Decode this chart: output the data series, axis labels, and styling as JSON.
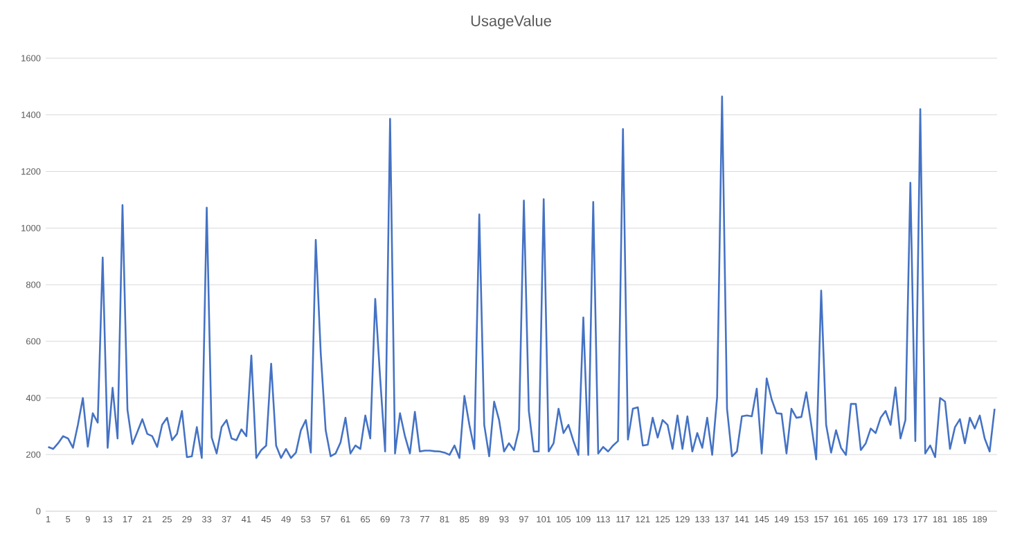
{
  "chart_data": {
    "type": "line",
    "title": "UsageValue",
    "categories": [
      "1",
      null,
      null,
      null,
      "5",
      null,
      null,
      null,
      "9",
      null,
      null,
      null,
      "13",
      null,
      null,
      null,
      "17",
      null,
      null,
      null,
      "21",
      null,
      null,
      null,
      "25",
      null,
      null,
      null,
      "29",
      null,
      null,
      null,
      "33",
      null,
      null,
      null,
      "37",
      null,
      null,
      null,
      "41",
      null,
      null,
      null,
      "45",
      null,
      null,
      null,
      "49",
      null,
      null,
      null,
      "53",
      null,
      null,
      null,
      "57",
      null,
      null,
      null,
      "61",
      null,
      null,
      null,
      "65",
      null,
      null,
      null,
      "69",
      null,
      null,
      null,
      "73",
      null,
      null,
      null,
      "77",
      null,
      null,
      null,
      "81",
      null,
      null,
      null,
      "85",
      null,
      null,
      null,
      "89",
      null,
      null,
      null,
      "93",
      null,
      null,
      null,
      "97",
      null,
      null,
      null,
      "101",
      null,
      null,
      null,
      "105",
      null,
      null,
      null,
      "109",
      null,
      null,
      null,
      "113",
      null,
      null,
      null,
      "117",
      null,
      null,
      null,
      "121",
      null,
      null,
      null,
      "125",
      null,
      null,
      null,
      "129",
      null,
      null,
      null,
      "133",
      null,
      null,
      null,
      "137",
      null,
      null,
      null,
      "141",
      null,
      null,
      null,
      "145",
      null,
      null,
      null,
      "149",
      null,
      null,
      null,
      "153",
      null,
      null,
      null,
      "157",
      null,
      null,
      null,
      "161",
      null,
      null,
      null,
      "165",
      null,
      null,
      null,
      "169",
      null,
      null,
      null,
      "173",
      null,
      null,
      null,
      "177",
      null,
      null,
      null,
      "181",
      null,
      null,
      null,
      "185",
      null,
      null,
      null,
      "189",
      null,
      null,
      null
    ],
    "series": [
      {
        "color": "#4472c4",
        "values": [
          227,
          220,
          240,
          265,
          257,
          224,
          305,
          400,
          228,
          346,
          313,
          896,
          224,
          436,
          257,
          1081,
          358,
          237,
          280,
          325,
          273,
          265,
          227,
          305,
          330,
          251,
          273,
          354,
          191,
          194,
          297,
          188,
          1072,
          260,
          204,
          297,
          322,
          257,
          251,
          289,
          265,
          550,
          188,
          216,
          232,
          521,
          232,
          188,
          220,
          188,
          207,
          286,
          322,
          207,
          958,
          560,
          286,
          194,
          204,
          243,
          330,
          204,
          232,
          220,
          338,
          257,
          750,
          469,
          211,
          1386,
          204,
          346,
          265,
          204,
          351,
          211,
          214,
          214,
          212,
          211,
          207,
          199,
          232,
          188,
          407,
          305,
          220,
          1048,
          305,
          194,
          387,
          322,
          211,
          240,
          216,
          289,
          1097,
          354,
          211,
          211,
          1102,
          211,
          240,
          362,
          276,
          305,
          248,
          199,
          684,
          199,
          1092,
          204,
          227,
          211,
          232,
          248,
          1350,
          253,
          362,
          367,
          232,
          235,
          330,
          260,
          322,
          305,
          220,
          338,
          220,
          335,
          211,
          276,
          224,
          330,
          199,
          403,
          1465,
          362,
          194,
          211,
          335,
          338,
          335,
          433,
          204,
          469,
          395,
          346,
          344,
          204,
          362,
          330,
          333,
          420,
          305,
          183,
          779,
          305,
          207,
          286,
          224,
          199,
          379,
          379,
          216,
          240,
          292,
          276,
          330,
          354,
          305,
          437,
          257,
          322,
          1160,
          248,
          1420,
          204,
          232,
          191,
          400,
          387,
          220,
          297,
          325,
          240,
          330,
          292,
          338,
          257,
          211,
          362
        ]
      }
    ],
    "ylim": [
      0,
      1600
    ],
    "yticks": [
      0,
      200,
      400,
      600,
      800,
      1000,
      1200,
      1400,
      1600
    ],
    "grid": "y",
    "legend": false,
    "marker": "none",
    "line_style": "solid"
  }
}
